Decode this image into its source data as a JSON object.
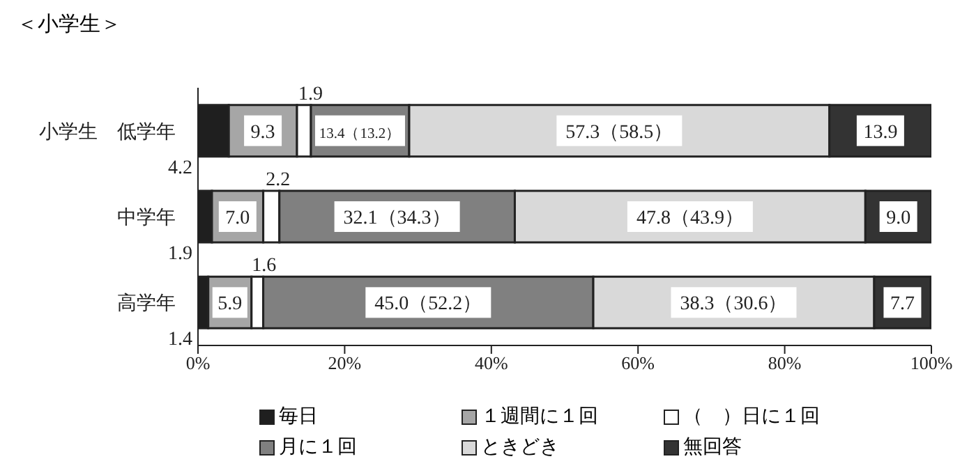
{
  "chart_data": {
    "type": "bar",
    "orientation": "horizontal",
    "stacked": true,
    "title": "＜小学生＞",
    "categories": [
      "小学生　低学年",
      "中学年",
      "高学年"
    ],
    "series": [
      {
        "name": "毎日",
        "color": "#1f1f1f",
        "values": [
          4.2,
          1.9,
          1.4
        ]
      },
      {
        "name": "１週間に１回",
        "color": "#a6a6a6",
        "values": [
          9.3,
          7.0,
          5.9
        ],
        "value_labels": [
          "9.3",
          "7.0",
          "5.9"
        ]
      },
      {
        "name": "（　）日に１回",
        "color": "#ffffff",
        "values": [
          1.9,
          2.2,
          1.6
        ]
      },
      {
        "name": "月に１回",
        "color": "#808080",
        "values": [
          13.4,
          32.1,
          45.0
        ],
        "value_labels": [
          "13.4（13.2）",
          "32.1（34.3）",
          "45.0（52.2）"
        ]
      },
      {
        "name": "ときどき",
        "color": "#d9d9d9",
        "values": [
          57.3,
          47.8,
          38.3
        ],
        "value_labels": [
          "57.3（58.5）",
          "47.8（43.9）",
          "38.3（30.6）"
        ]
      },
      {
        "name": "無回答",
        "color": "#333333",
        "values": [
          13.9,
          9.0,
          7.7
        ],
        "value_labels": [
          "13.9",
          "9.0",
          "7.7"
        ]
      }
    ],
    "data_labels": true,
    "xlim": [
      0,
      100
    ],
    "xticks": [
      {
        "value": 0,
        "label": "0%"
      },
      {
        "value": 20,
        "label": "20%"
      },
      {
        "value": 40,
        "label": "40%"
      },
      {
        "value": 60,
        "label": "60%"
      },
      {
        "value": 80,
        "label": "80%"
      },
      {
        "value": 100,
        "label": "100%"
      }
    ],
    "grid": false,
    "legend": "bottom"
  }
}
